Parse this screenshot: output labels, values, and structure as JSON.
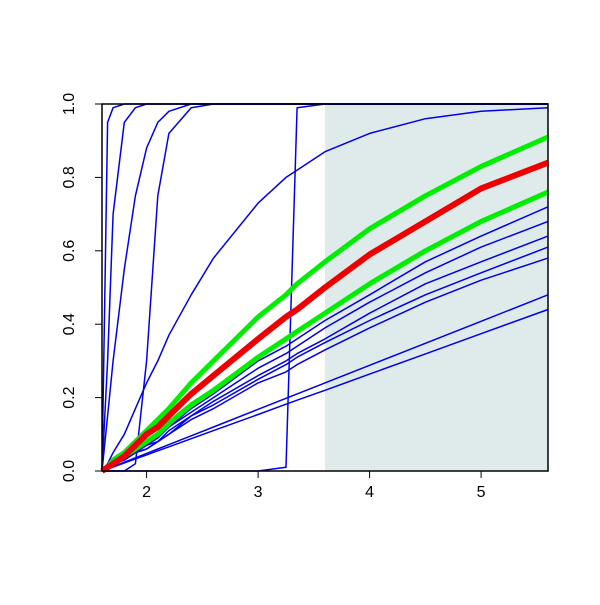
{
  "chart_data": {
    "type": "line",
    "xlim": [
      1.6,
      5.6
    ],
    "ylim": [
      0,
      1
    ],
    "xticks": [
      2,
      3,
      4,
      5
    ],
    "yticks": [
      {
        "value": 0,
        "label": "0.0"
      },
      {
        "value": 0.2,
        "label": "0.2"
      },
      {
        "value": 0.4,
        "label": "0.4"
      },
      {
        "value": 0.6,
        "label": "0.6"
      },
      {
        "value": 0.8,
        "label": "0.8"
      },
      {
        "value": 1,
        "label": "1.0"
      }
    ],
    "shade": {
      "xlim": [
        3.6,
        5.6
      ],
      "color": "#deebea"
    },
    "x": [
      1.6,
      1.65,
      1.7,
      1.8,
      1.9,
      2.0,
      2.1,
      2.2,
      2.4,
      2.6,
      3.0,
      3.25,
      3.35,
      3.6,
      4.0,
      4.5,
      5.0,
      5.6
    ],
    "series": [
      {
        "color": "#0000ee",
        "line_width": 1.5,
        "values": [
          0,
          0.95,
          0.99,
          1,
          1,
          1,
          1,
          1,
          1,
          1,
          1,
          1,
          1,
          1,
          1,
          1,
          1,
          1
        ]
      },
      {
        "color": "#0000ee",
        "line_width": 1.5,
        "values": [
          0,
          0.3,
          0.7,
          0.95,
          0.99,
          1,
          1,
          1,
          1,
          1,
          1,
          1,
          1,
          1,
          1,
          1,
          1,
          1
        ]
      },
      {
        "color": "#0000ee",
        "line_width": 1.5,
        "values": [
          0,
          0.15,
          0.3,
          0.55,
          0.75,
          0.88,
          0.95,
          0.98,
          1,
          1,
          1,
          1,
          1,
          1,
          1,
          1,
          1,
          1
        ]
      },
      {
        "color": "#0000ee",
        "line_width": 1.5,
        "values": [
          0,
          0,
          0,
          0,
          0.02,
          0.3,
          0.75,
          0.92,
          0.99,
          1,
          1,
          1,
          1,
          1,
          1,
          1,
          1,
          1
        ]
      },
      {
        "color": "#0000ee",
        "line_width": 1.5,
        "values": [
          0,
          0.02,
          0.05,
          0.1,
          0.17,
          0.24,
          0.3,
          0.37,
          0.48,
          0.58,
          0.73,
          0.8,
          0.82,
          0.87,
          0.92,
          0.96,
          0.98,
          0.99
        ]
      },
      {
        "color": "#0000ee",
        "line_width": 1.5,
        "values": [
          0,
          0,
          0,
          0,
          0,
          0,
          0,
          0,
          0,
          0,
          0,
          0.01,
          0.99,
          1,
          1,
          1,
          1,
          1
        ]
      },
      {
        "color": "#0000ee",
        "line_width": 1.5,
        "values": [
          0,
          0.01,
          0.02,
          0.04,
          0.06,
          0.08,
          0.09,
          0.12,
          0.17,
          0.21,
          0.3,
          0.34,
          0.36,
          0.41,
          0.48,
          0.57,
          0.64,
          0.72
        ]
      },
      {
        "color": "#0000ee",
        "line_width": 1.5,
        "values": [
          0,
          0.01,
          0.02,
          0.03,
          0.05,
          0.07,
          0.09,
          0.12,
          0.16,
          0.2,
          0.28,
          0.32,
          0.34,
          0.39,
          0.46,
          0.54,
          0.61,
          0.68
        ]
      },
      {
        "color": "#0000ee",
        "line_width": 1.5,
        "values": [
          0,
          0.01,
          0.02,
          0.03,
          0.05,
          0.07,
          0.08,
          0.11,
          0.15,
          0.19,
          0.26,
          0.3,
          0.32,
          0.36,
          0.43,
          0.51,
          0.57,
          0.64
        ]
      },
      {
        "color": "#0000ee",
        "line_width": 1.5,
        "values": [
          0,
          0.01,
          0.02,
          0.03,
          0.05,
          0.06,
          0.08,
          0.1,
          0.15,
          0.18,
          0.25,
          0.29,
          0.31,
          0.35,
          0.41,
          0.48,
          0.54,
          0.61
        ]
      },
      {
        "color": "#0000ee",
        "line_width": 1.5,
        "values": [
          0,
          0.01,
          0.02,
          0.03,
          0.05,
          0.06,
          0.08,
          0.1,
          0.14,
          0.17,
          0.24,
          0.27,
          0.29,
          0.33,
          0.39,
          0.46,
          0.52,
          0.58
        ]
      },
      {
        "color": "#0000ee",
        "line_width": 1.5,
        "values": [
          0,
          0.006,
          0.012,
          0.024,
          0.036,
          0.048,
          0.06,
          0.072,
          0.096,
          0.12,
          0.168,
          0.198,
          0.21,
          0.24,
          0.288,
          0.348,
          0.408,
          0.48
        ]
      },
      {
        "color": "#0000ee",
        "line_width": 1.5,
        "values": [
          0,
          0.006,
          0.011,
          0.022,
          0.033,
          0.044,
          0.055,
          0.066,
          0.088,
          0.11,
          0.154,
          0.182,
          0.193,
          0.22,
          0.264,
          0.319,
          0.374,
          0.44
        ]
      },
      {
        "color": "#00ee00",
        "line_width": 5,
        "values": [
          0,
          0.01,
          0.02,
          0.04,
          0.06,
          0.08,
          0.1,
          0.13,
          0.18,
          0.22,
          0.31,
          0.36,
          0.38,
          0.43,
          0.51,
          0.6,
          0.68,
          0.76
        ]
      },
      {
        "color": "#00ee00",
        "line_width": 5,
        "values": [
          0,
          0.01,
          0.03,
          0.05,
          0.08,
          0.11,
          0.14,
          0.17,
          0.24,
          0.3,
          0.42,
          0.48,
          0.51,
          0.57,
          0.66,
          0.75,
          0.83,
          0.91
        ]
      },
      {
        "color": "#ee0000",
        "line_width": 6,
        "values": [
          0,
          0.01,
          0.02,
          0.04,
          0.07,
          0.1,
          0.12,
          0.15,
          0.21,
          0.26,
          0.36,
          0.42,
          0.44,
          0.5,
          0.59,
          0.68,
          0.77,
          0.84
        ]
      }
    ]
  }
}
